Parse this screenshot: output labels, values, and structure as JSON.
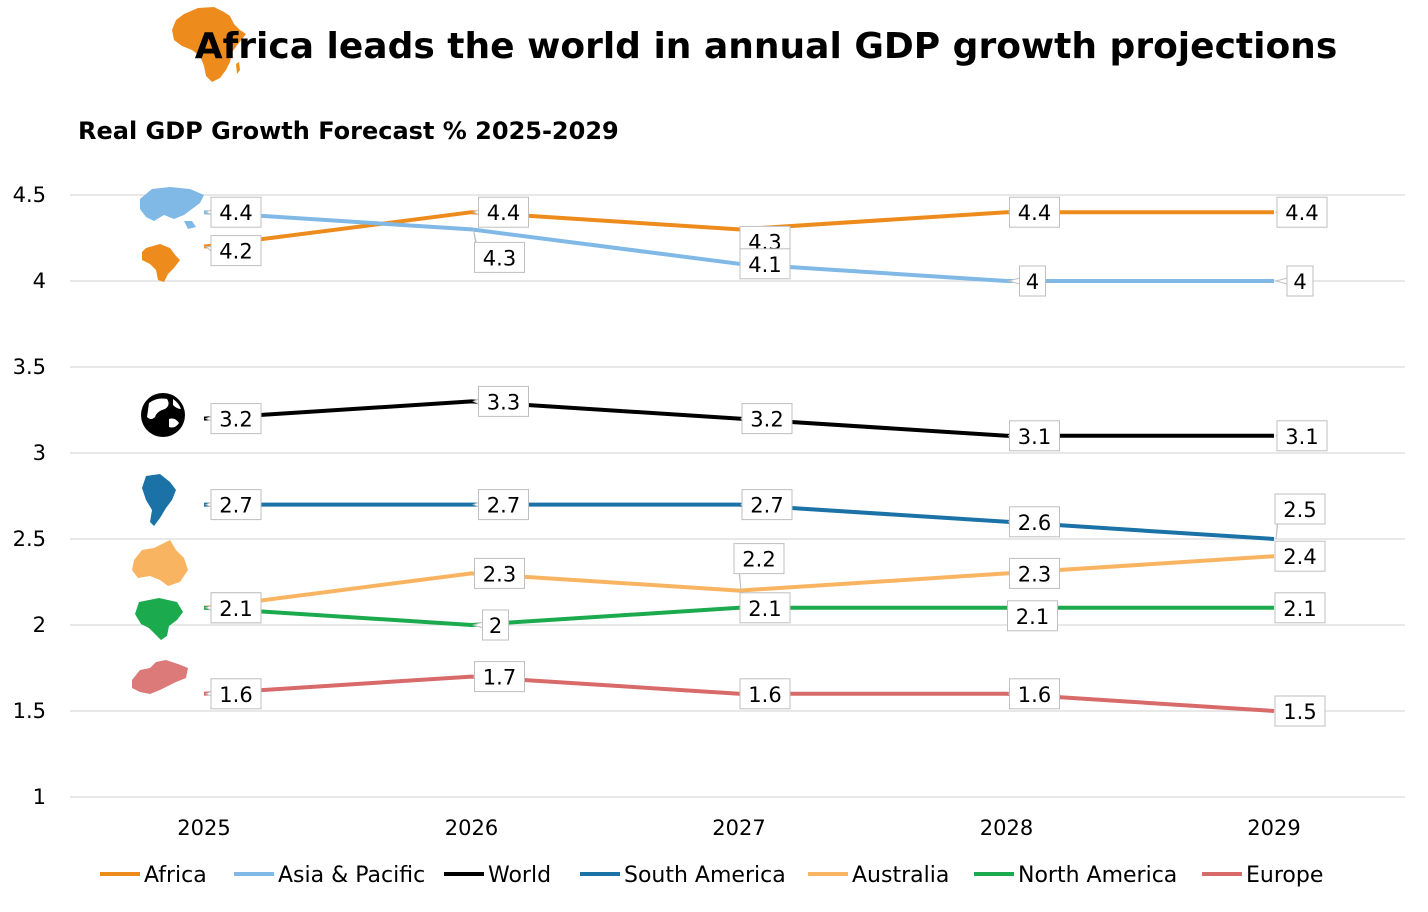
{
  "header": {
    "title": "Africa leads the world in annual GDP growth projections",
    "title_icon": "africa-map-icon"
  },
  "chart_data": {
    "type": "line",
    "title": "Africa leads the world in annual GDP growth projections",
    "subtitle": "Real GDP Growth Forecast % 2025-2029",
    "xlabel": "",
    "ylabel": "",
    "categories": [
      "2025",
      "2026",
      "2027",
      "2028",
      "2029"
    ],
    "ylim": [
      1,
      4.5
    ],
    "yticks": [
      "1",
      "1.5",
      "2",
      "2.5",
      "3",
      "3.5",
      "4",
      "4.5"
    ],
    "grid": true,
    "legend_position": "bottom",
    "series": [
      {
        "name": "Africa",
        "color": "#ED8B1C",
        "icon": "africa-map-icon",
        "values": [
          4.2,
          4.4,
          4.3,
          4.4,
          4.4
        ]
      },
      {
        "name": "Asia & Pacific",
        "color": "#80B8E6",
        "icon": "asia-pacific-map-icon",
        "values": [
          4.4,
          4.3,
          4.1,
          4,
          4
        ]
      },
      {
        "name": "World",
        "color": "#000000",
        "icon": "globe-icon",
        "values": [
          3.2,
          3.3,
          3.2,
          3.1,
          3.1
        ]
      },
      {
        "name": "South America",
        "color": "#1A72A6",
        "icon": "south-america-map-icon",
        "values": [
          2.7,
          2.7,
          2.7,
          2.6,
          2.5
        ]
      },
      {
        "name": "Australia",
        "color": "#F9B462",
        "icon": "australia-map-icon",
        "values": [
          2.1,
          2.3,
          2.2,
          2.3,
          2.4
        ]
      },
      {
        "name": "North America",
        "color": "#1BAA4E",
        "icon": "north-america-map-icon",
        "values": [
          2.1,
          2,
          2.1,
          2.1,
          2.1
        ]
      },
      {
        "name": "Europe",
        "color": "#D86A6A",
        "icon": "europe-map-icon",
        "values": [
          1.6,
          1.7,
          1.6,
          1.6,
          1.5
        ]
      }
    ],
    "data_labels": [
      [
        "4.2",
        "4.4",
        "4.3",
        "4.4",
        "4.4"
      ],
      [
        "4.4",
        "4.3",
        "4.1",
        "4",
        "4"
      ],
      [
        "3.2",
        "3.3",
        "3.2",
        "3.1",
        "3.1"
      ],
      [
        "2.7",
        "2.7",
        "2.7",
        "2.6",
        "2.5"
      ],
      [
        "2.1",
        "2.3",
        "2.2",
        "2.3",
        "2.4"
      ],
      [
        "2.1",
        "2",
        "2.1",
        "2.1",
        "2.1"
      ],
      [
        "1.6",
        "1.7",
        "1.6",
        "1.6",
        "1.5"
      ]
    ]
  }
}
